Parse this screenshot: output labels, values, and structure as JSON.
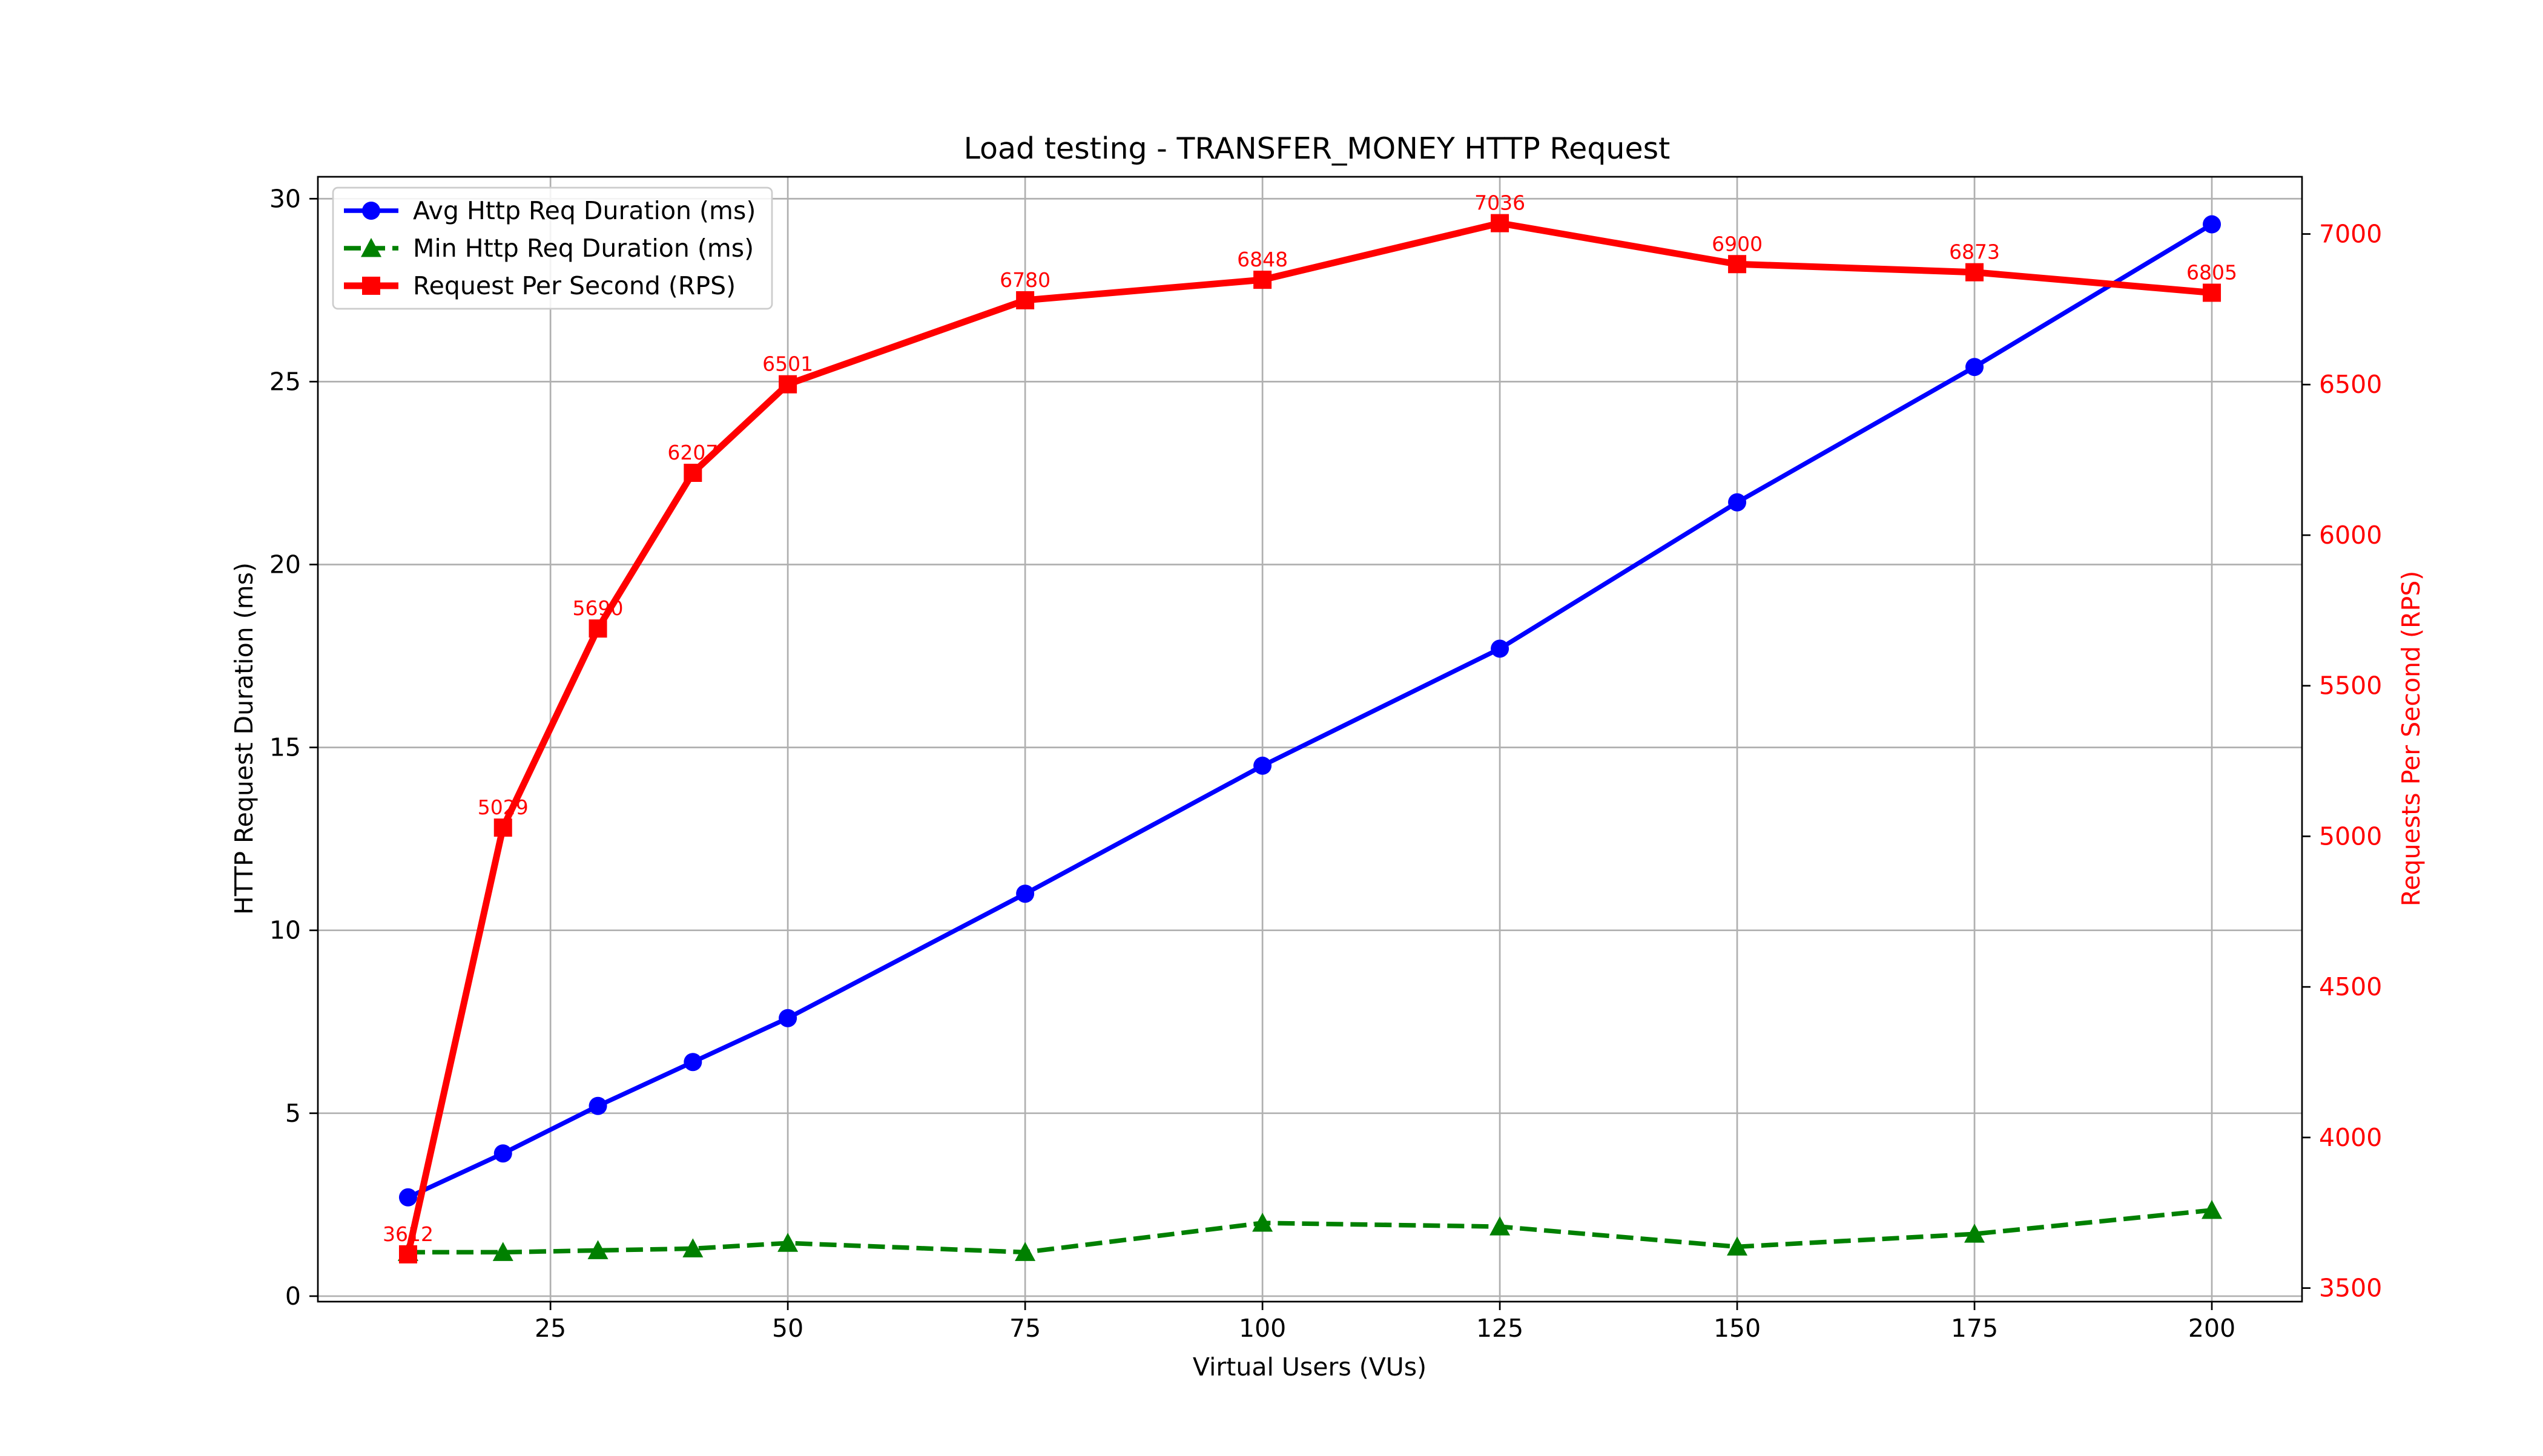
{
  "chart_data": {
    "type": "line",
    "title": "Load testing - TRANSFER_MONEY HTTP Request",
    "xlabel": "Virtual Users (VUs)",
    "ylabel": "HTTP Request Duration (ms)",
    "y2label": "Requests Per Second (RPS)",
    "x": [
      10,
      20,
      30,
      40,
      50,
      75,
      100,
      125,
      150,
      175,
      200
    ],
    "xticks": [
      25,
      50,
      75,
      100,
      125,
      150,
      175,
      200
    ],
    "yticks": [
      0,
      5,
      10,
      15,
      20,
      25,
      30
    ],
    "y2ticks": [
      3500,
      4000,
      4500,
      5000,
      5500,
      6000,
      6500,
      7000
    ],
    "xlim": [
      0.5,
      209.5
    ],
    "ylim": [
      -0.15,
      30.6
    ],
    "y2lim": [
      3455,
      7190
    ],
    "grid": true,
    "legend_position": "upper-left",
    "series": [
      {
        "name": "Avg Http Req Duration (ms)",
        "axis": "left",
        "color": "#0000ff",
        "marker": "circle",
        "linestyle": "solid",
        "values": [
          2.7,
          3.9,
          5.2,
          6.4,
          7.6,
          11.0,
          14.5,
          17.7,
          21.7,
          25.4,
          29.3
        ]
      },
      {
        "name": "Min Http Req Duration (ms)",
        "axis": "left",
        "color": "#008000",
        "marker": "triangle",
        "linestyle": "dashed",
        "values": [
          1.2,
          1.2,
          1.25,
          1.3,
          1.45,
          1.2,
          2.0,
          1.9,
          1.35,
          1.7,
          2.35
        ]
      },
      {
        "name": "Request Per Second (RPS)",
        "axis": "right",
        "color": "#ff0000",
        "marker": "square",
        "linestyle": "solid",
        "values": [
          3612,
          5029,
          5690,
          6207,
          6501,
          6780,
          6848,
          7036,
          6900,
          6873,
          6805
        ],
        "data_labels": [
          "3612",
          "5029",
          "5690",
          "6207",
          "6501",
          "6780",
          "6848",
          "7036",
          "6900",
          "6873",
          "6805"
        ]
      }
    ]
  }
}
